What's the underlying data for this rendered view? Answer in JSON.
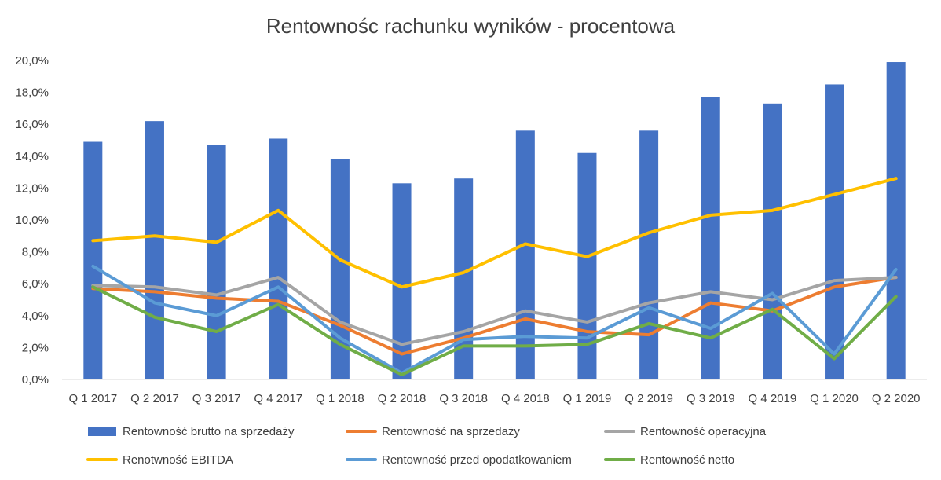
{
  "chart_data": {
    "type": "bar",
    "title": "Rentownośc rachunku wyników - procentowa",
    "categories": [
      "Q 1 2017",
      "Q 2 2017",
      "Q 3 2017",
      "Q 4 2017",
      "Q 1 2018",
      "Q 2 2018",
      "Q 3 2018",
      "Q 4 2018",
      "Q 1 2019",
      "Q 2 2019",
      "Q 3 2019",
      "Q 4 2019",
      "Q 1 2020",
      "Q 2 2020"
    ],
    "ylim": [
      0,
      20
    ],
    "yticks": [
      "0,0%",
      "2,0%",
      "4,0%",
      "6,0%",
      "8,0%",
      "10,0%",
      "12,0%",
      "14,0%",
      "16,0%",
      "18,0%",
      "20,0%"
    ],
    "grid": false,
    "legend_position": "bottom",
    "series": [
      {
        "name": "Rentowność brutto na sprzedaży",
        "type": "bar",
        "color": "#4472C4",
        "values": [
          14.9,
          16.2,
          14.7,
          15.1,
          13.8,
          12.3,
          12.6,
          15.6,
          14.2,
          15.6,
          17.7,
          17.3,
          18.5,
          19.9
        ]
      },
      {
        "name": "Rentowność na sprzedaży",
        "type": "line",
        "color": "#ED7D31",
        "values": [
          5.7,
          5.5,
          5.1,
          4.9,
          3.4,
          1.6,
          2.6,
          3.8,
          3.0,
          2.8,
          4.8,
          4.3,
          5.8,
          6.4
        ]
      },
      {
        "name": "Rentowność operacyjna",
        "type": "line",
        "color": "#A5A5A5",
        "values": [
          5.9,
          5.8,
          5.3,
          6.4,
          3.6,
          2.2,
          3.0,
          4.3,
          3.6,
          4.8,
          5.5,
          5.0,
          6.2,
          6.4
        ]
      },
      {
        "name": "Renotwność EBITDA",
        "type": "line",
        "color": "#FFC000",
        "values": [
          8.7,
          9.0,
          8.6,
          10.6,
          7.5,
          5.8,
          6.7,
          8.5,
          7.7,
          9.2,
          10.3,
          10.6,
          11.6,
          12.6
        ]
      },
      {
        "name": "Rentowność przed opodatkowaniem",
        "type": "line",
        "color": "#5B9BD5",
        "values": [
          7.1,
          4.8,
          4.0,
          5.8,
          2.6,
          0.4,
          2.5,
          2.7,
          2.6,
          4.5,
          3.2,
          5.4,
          1.6,
          6.9
        ]
      },
      {
        "name": "Rentowność netto",
        "type": "line",
        "color": "#70AD47",
        "values": [
          5.8,
          3.9,
          3.0,
          4.7,
          2.2,
          0.3,
          2.1,
          2.1,
          2.2,
          3.5,
          2.6,
          4.4,
          1.3,
          5.2
        ]
      }
    ]
  }
}
